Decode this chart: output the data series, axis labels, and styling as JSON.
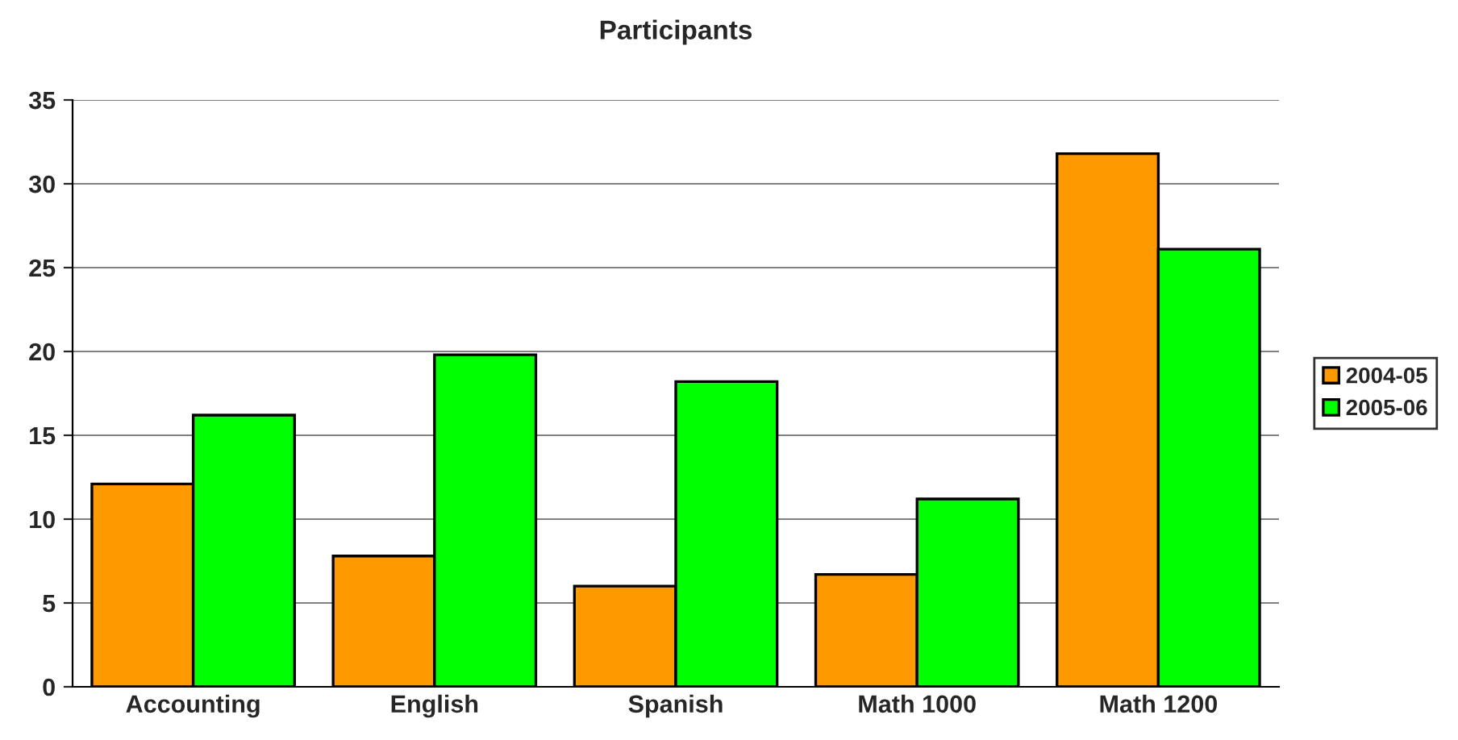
{
  "chart_data": {
    "type": "bar",
    "title": "Participants",
    "categories": [
      "Accounting",
      "English",
      "Spanish",
      "Math 1000",
      "Math 1200"
    ],
    "series": [
      {
        "name": "2004-05",
        "color": "#ff9900",
        "values": [
          12.1,
          7.8,
          6.0,
          6.7,
          31.8
        ]
      },
      {
        "name": "2005-06",
        "color": "#00ff00",
        "values": [
          16.2,
          19.8,
          18.2,
          11.2,
          26.1
        ]
      }
    ],
    "ylim": [
      0,
      35
    ],
    "yticks": [
      0,
      5,
      10,
      15,
      20,
      25,
      30,
      35
    ],
    "grid": "y",
    "legend": "right"
  }
}
